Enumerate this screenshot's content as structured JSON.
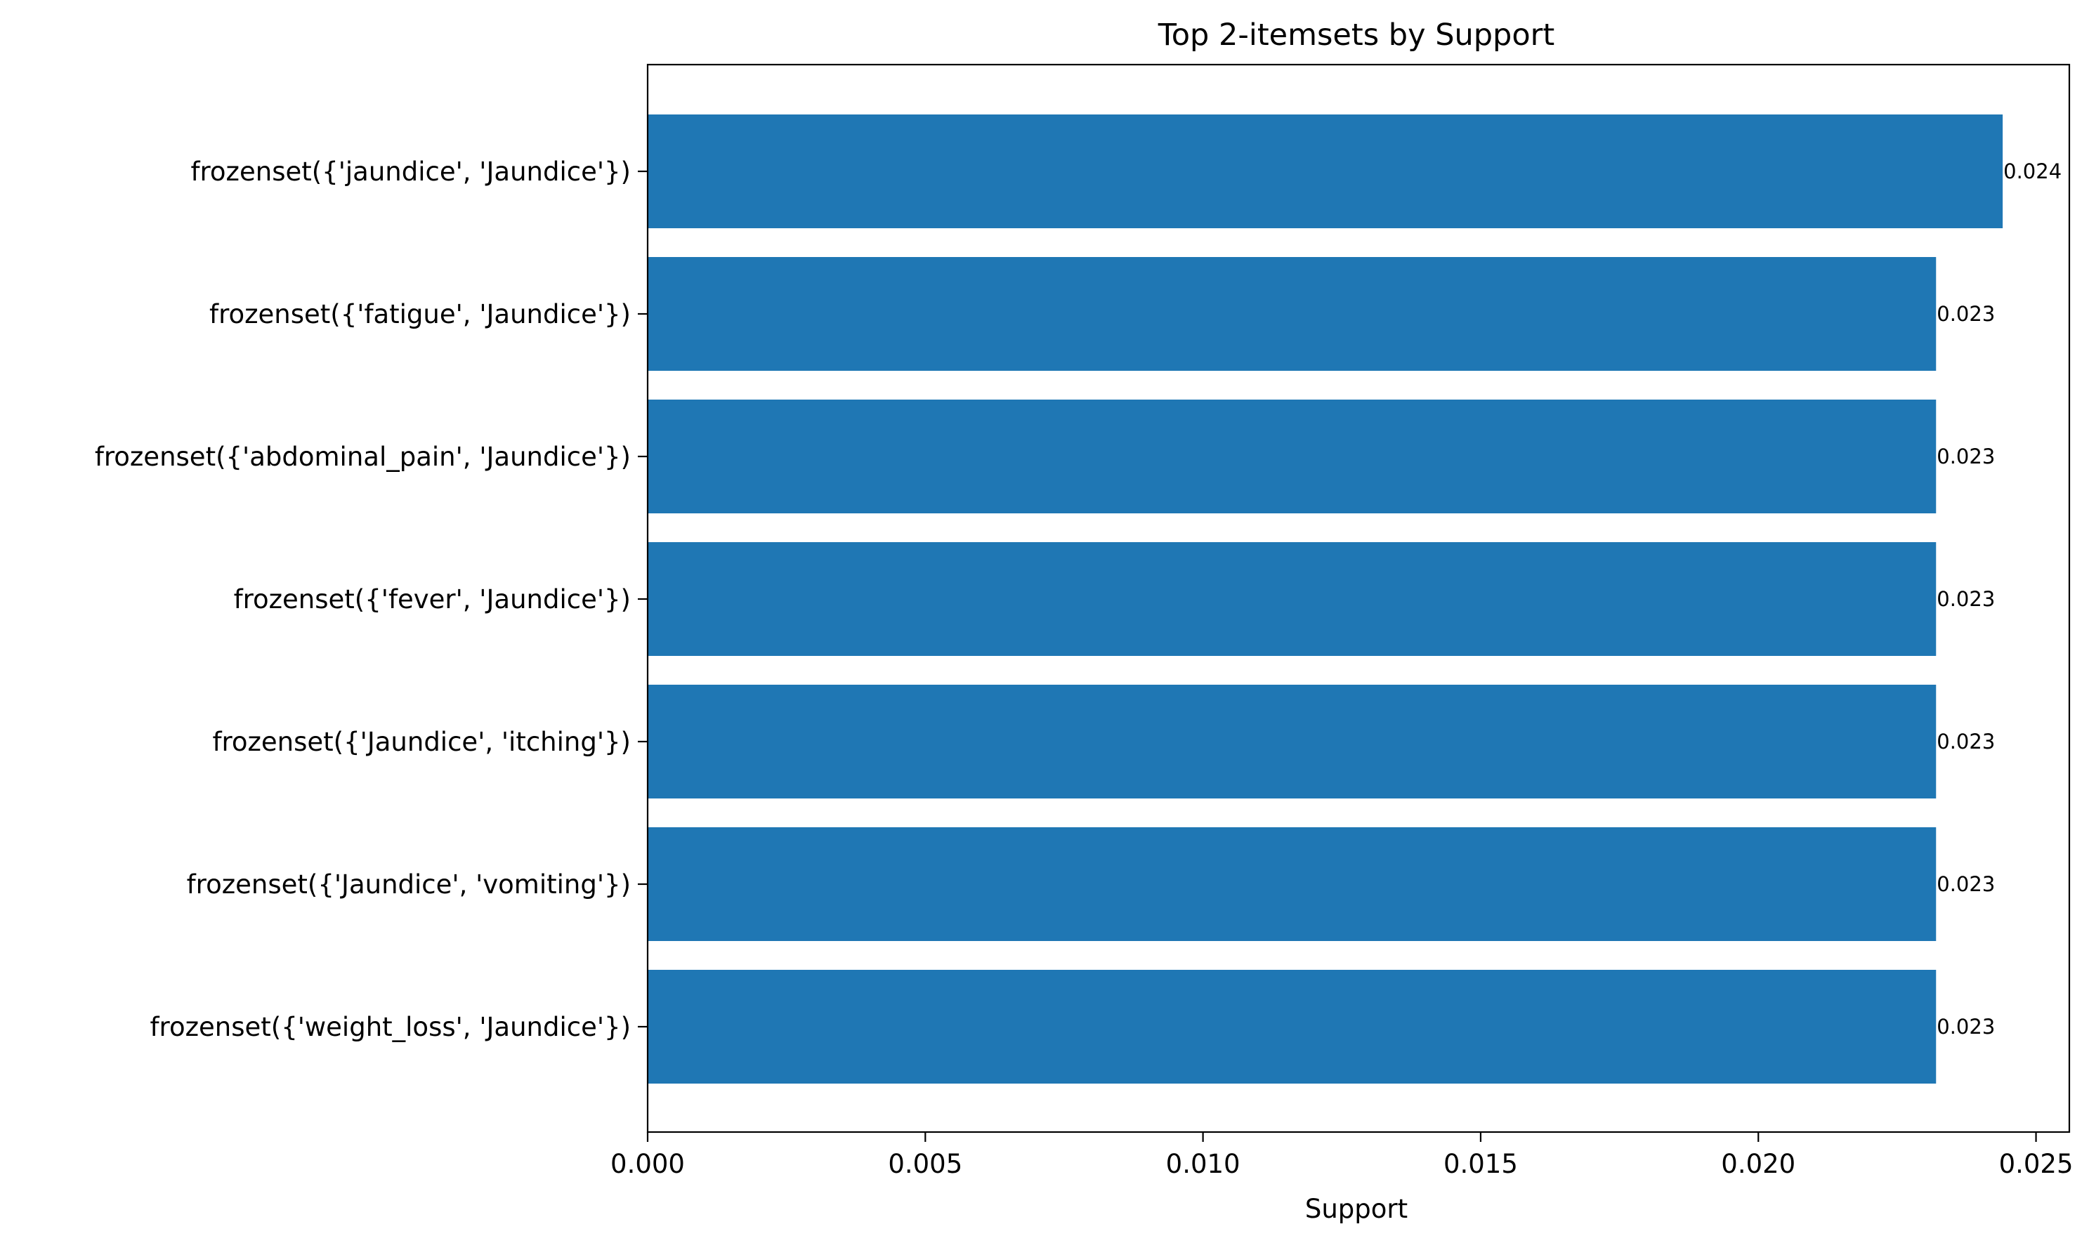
{
  "chart_data": {
    "type": "bar",
    "orientation": "horizontal",
    "title": "Top 2-itemsets by Support",
    "xlabel": "Support",
    "ylabel": "",
    "xlim": [
      0,
      0.0256
    ],
    "x_ticks": [
      0.0,
      0.005,
      0.01,
      0.015,
      0.02,
      0.025
    ],
    "x_tick_labels": [
      "0.000",
      "0.005",
      "0.010",
      "0.015",
      "0.020",
      "0.025"
    ],
    "grid": false,
    "bar_color": "#1f77b4",
    "categories": [
      "frozenset({'jaundice', 'Jaundice'})",
      "frozenset({'fatigue', 'Jaundice'})",
      "frozenset({'abdominal_pain', 'Jaundice'})",
      "frozenset({'fever', 'Jaundice'})",
      "frozenset({'Jaundice', 'itching'})",
      "frozenset({'Jaundice', 'vomiting'})",
      "frozenset({'weight_loss', 'Jaundice'})"
    ],
    "values": [
      0.0244,
      0.0232,
      0.0232,
      0.0232,
      0.0232,
      0.0232,
      0.0232
    ],
    "value_labels": [
      "0.024",
      "0.023",
      "0.023",
      "0.023",
      "0.023",
      "0.023",
      "0.023"
    ]
  }
}
